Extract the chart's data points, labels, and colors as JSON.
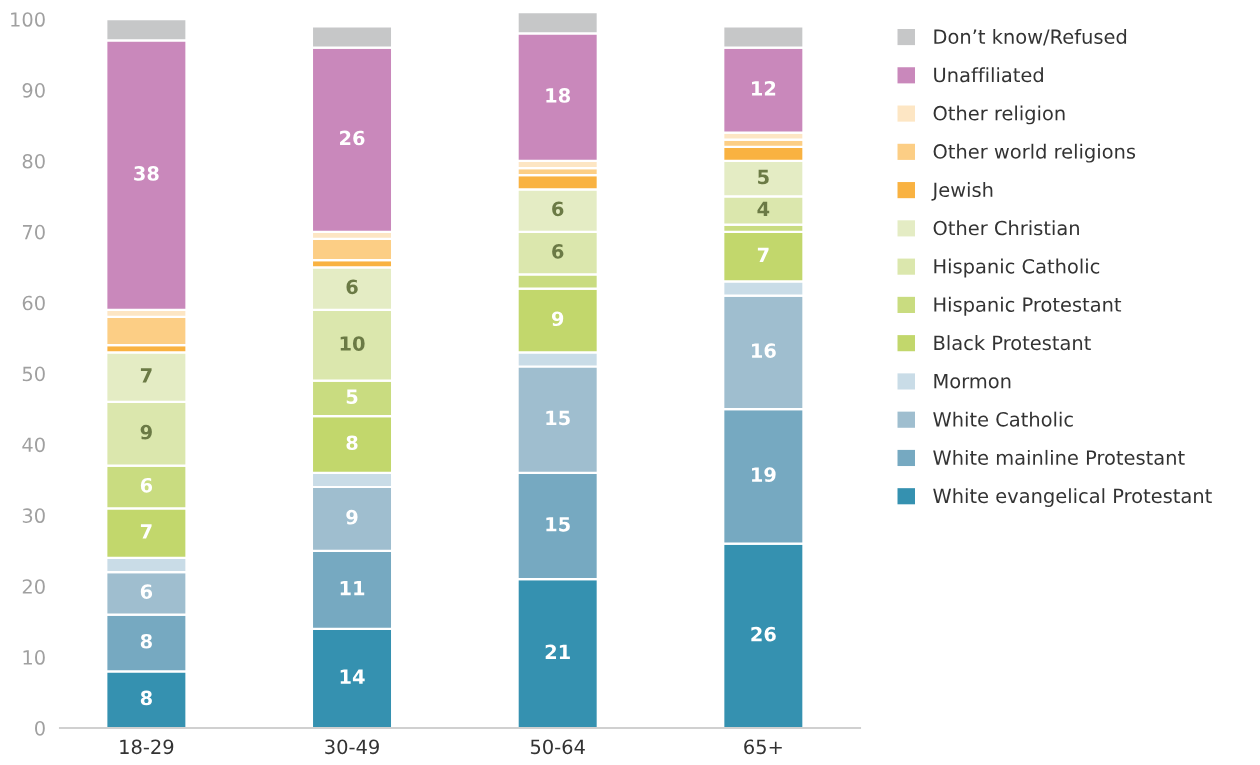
{
  "chart_data": {
    "type": "bar",
    "stacked": true,
    "categories": [
      "18-29",
      "30-49",
      "50-64",
      "65+"
    ],
    "ylim": [
      0,
      102
    ],
    "yticks": [
      0,
      10,
      20,
      30,
      40,
      50,
      60,
      70,
      80,
      90,
      100
    ],
    "grid": false,
    "legend": "right",
    "series": [
      {
        "name": "White evangelical Protestant",
        "color": "#3591b0",
        "values": [
          8,
          14,
          21,
          26
        ],
        "value_labels": [
          "8",
          "14",
          "21",
          "26"
        ]
      },
      {
        "name": "White mainline Protestant",
        "color": "#76a9c1",
        "values": [
          8,
          11,
          15,
          19
        ],
        "value_labels": [
          "8",
          "11",
          "15",
          "19"
        ]
      },
      {
        "name": "White Catholic",
        "color": "#9fbecf",
        "values": [
          6,
          9,
          15,
          16
        ],
        "value_labels": [
          "6",
          "9",
          "15",
          "16"
        ]
      },
      {
        "name": "Mormon",
        "color": "#c9dce7",
        "values": [
          2,
          2,
          2,
          2
        ],
        "value_labels": [
          null,
          null,
          null,
          null
        ]
      },
      {
        "name": "Black Protestant",
        "color": "#c2d76c",
        "values": [
          7,
          8,
          9,
          7
        ],
        "value_labels": [
          "7",
          "8",
          "9",
          "7"
        ]
      },
      {
        "name": "Hispanic Protestant",
        "color": "#c9dc80",
        "values": [
          6,
          5,
          2,
          1
        ],
        "value_labels": [
          "6",
          "5",
          null,
          null
        ]
      },
      {
        "name": "Hispanic Catholic",
        "color": "#dbe7ad",
        "values": [
          9,
          10,
          6,
          4
        ],
        "value_labels": [
          "9",
          "10",
          "6",
          "4"
        ]
      },
      {
        "name": "Other Christian",
        "color": "#e4ecc4",
        "values": [
          7,
          6,
          6,
          5
        ],
        "value_labels": [
          "7",
          "6",
          "6",
          "5"
        ]
      },
      {
        "name": "Jewish",
        "color": "#f9b241",
        "values": [
          1,
          1,
          2,
          2
        ],
        "value_labels": [
          null,
          null,
          null,
          null
        ]
      },
      {
        "name": "Other world religions",
        "color": "#fcce85",
        "values": [
          4,
          3,
          1,
          1
        ],
        "value_labels": [
          null,
          null,
          null,
          null
        ]
      },
      {
        "name": "Other religion",
        "color": "#fde6c4",
        "values": [
          1,
          1,
          1,
          1
        ],
        "value_labels": [
          null,
          null,
          null,
          null
        ]
      },
      {
        "name": "Unaffiliated",
        "color": "#c988bb",
        "values": [
          38,
          26,
          18,
          12
        ],
        "value_labels": [
          "38",
          "26",
          "18",
          "12"
        ]
      },
      {
        "name": "Don’t know/Refused",
        "color": "#c6c7c8",
        "values": [
          3,
          3,
          3,
          3
        ],
        "value_labels": [
          null,
          null,
          null,
          null
        ]
      }
    ]
  }
}
